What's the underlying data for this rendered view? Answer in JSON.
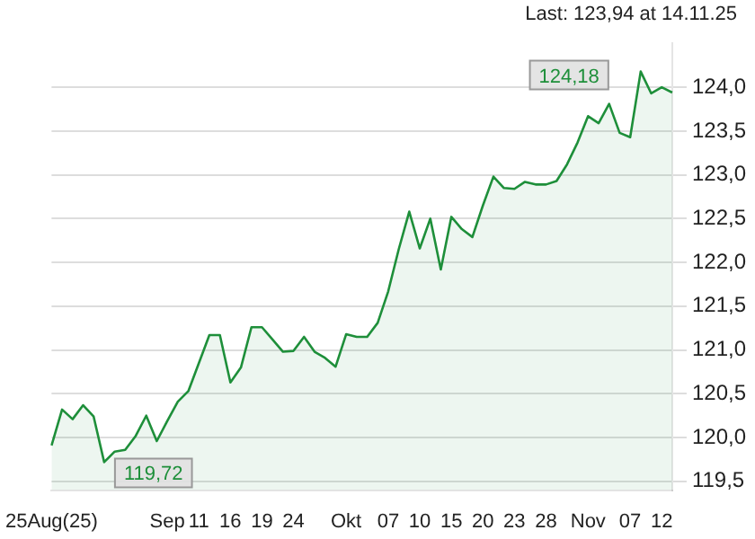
{
  "chart_data": {
    "type": "area",
    "title": "Last: 123,94 at 14.11.25",
    "categories": [
      "25Aug(25)",
      null,
      null,
      null,
      null,
      null,
      null,
      null,
      null,
      null,
      null,
      "Sep",
      null,
      null,
      "11",
      null,
      null,
      "16",
      null,
      null,
      "19",
      null,
      null,
      "24",
      null,
      null,
      null,
      null,
      "Okt",
      null,
      null,
      null,
      "07",
      null,
      null,
      "10",
      null,
      null,
      "15",
      null,
      null,
      "20",
      null,
      null,
      "23",
      null,
      null,
      "28",
      null,
      null,
      null,
      "Nov",
      null,
      null,
      null,
      "07",
      null,
      null,
      "12",
      null
    ],
    "series": [
      {
        "color": "#1e8f3a",
        "values": [
          119.91,
          120.32,
          120.21,
          120.37,
          120.24,
          119.72,
          119.84,
          119.86,
          120.02,
          120.25,
          119.96,
          120.19,
          120.41,
          120.53,
          120.85,
          121.17,
          121.17,
          120.63,
          120.8,
          121.26,
          121.26,
          121.12,
          120.98,
          120.99,
          121.15,
          120.98,
          120.91,
          120.81,
          121.18,
          121.15,
          121.15,
          121.31,
          121.67,
          122.15,
          122.58,
          122.16,
          122.5,
          121.92,
          122.52,
          122.38,
          122.29,
          122.65,
          122.98,
          122.85,
          122.84,
          122.92,
          122.89,
          122.89,
          122.93,
          123.12,
          123.37,
          123.67,
          123.59,
          123.81,
          123.48,
          123.43,
          124.18,
          123.93,
          124.0,
          123.94
        ]
      }
    ],
    "ylim": [
      119.4,
      124.5
    ],
    "yticks": [
      {
        "value": 119.5,
        "label": "119,5"
      },
      {
        "value": 120,
        "label": "120,0"
      },
      {
        "value": 120.5,
        "label": "120,5"
      },
      {
        "value": 121,
        "label": "121,0"
      },
      {
        "value": 121.5,
        "label": "121,5"
      },
      {
        "value": 122,
        "label": "122,0"
      },
      {
        "value": 122.5,
        "label": "122,5"
      },
      {
        "value": 123,
        "label": "123,0"
      },
      {
        "value": 123.5,
        "label": "123,5"
      },
      {
        "value": 124,
        "label": "124,0"
      }
    ],
    "annotations": [
      "124,18",
      "119,72"
    ],
    "grid": "y",
    "legend": false,
    "marker": "none",
    "line_style": "solid"
  }
}
